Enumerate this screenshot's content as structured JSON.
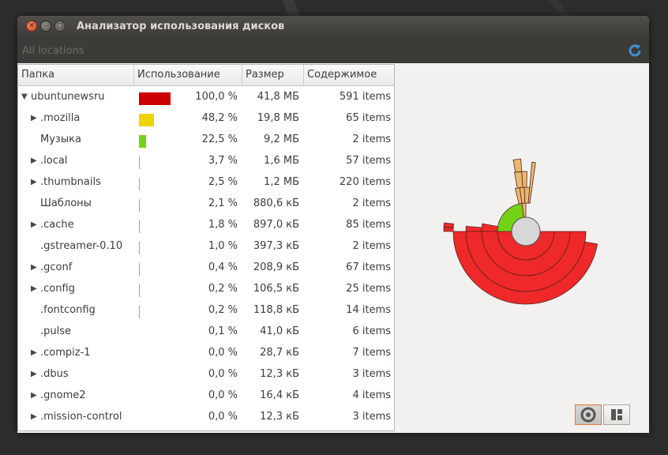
{
  "window": {
    "title": "Анализатор использования дисков"
  },
  "toolbar": {
    "locations_label": "All locations"
  },
  "columns": {
    "folder": "Папка",
    "usage": "Использование",
    "size": "Размер",
    "contents": "Содержимое"
  },
  "rows": [
    {
      "name": "ubuntunewsru",
      "expander": "expanded",
      "percent": "100,0 %",
      "usage_fraction": 1.0,
      "bar_color": "#cc0000",
      "size": "41,8 МБ",
      "items": "591 items"
    },
    {
      "name": ".mozilla",
      "expander": "collapsed",
      "percent": "48,2 %",
      "usage_fraction": 0.482,
      "bar_color": "#edd400",
      "size": "19,8 МБ",
      "items": "65 items"
    },
    {
      "name": "Музыка",
      "expander": "none",
      "percent": "22,5 %",
      "usage_fraction": 0.225,
      "bar_color": "#73d216",
      "size": "9,2 МБ",
      "items": "2 items"
    },
    {
      "name": ".local",
      "expander": "collapsed",
      "percent": "3,7 %",
      "usage_fraction": 0.037,
      "bar_color": "#73d216",
      "size": "1,6 МБ",
      "items": "57 items"
    },
    {
      "name": ".thumbnails",
      "expander": "collapsed",
      "percent": "2,5 %",
      "usage_fraction": 0.025,
      "bar_color": "#73d216",
      "size": "1,2 МБ",
      "items": "220 items"
    },
    {
      "name": "Шаблоны",
      "expander": "none",
      "percent": "2,1 %",
      "usage_fraction": 0.021,
      "bar_color": "#73d216",
      "size": "880,6 кБ",
      "items": "2 items"
    },
    {
      "name": ".cache",
      "expander": "collapsed",
      "percent": "1,8 %",
      "usage_fraction": 0.018,
      "bar_color": "#73d216",
      "size": "897,0 кБ",
      "items": "85 items"
    },
    {
      "name": ".gstreamer-0.10",
      "expander": "none",
      "percent": "1,0 %",
      "usage_fraction": 0.01,
      "bar_color": "#73d216",
      "size": "397,3 кБ",
      "items": "2 items"
    },
    {
      "name": ".gconf",
      "expander": "collapsed",
      "percent": "0,4 %",
      "usage_fraction": 0.004,
      "bar_color": "#73d216",
      "size": "208,9 кБ",
      "items": "67 items"
    },
    {
      "name": ".config",
      "expander": "collapsed",
      "percent": "0,2 %",
      "usage_fraction": 0.002,
      "bar_color": "#73d216",
      "size": "106,5 кБ",
      "items": "25 items"
    },
    {
      "name": ".fontconfig",
      "expander": "none",
      "percent": "0,2 %",
      "usage_fraction": 0.002,
      "bar_color": "#73d216",
      "size": "118,8 кБ",
      "items": "14 items"
    },
    {
      "name": ".pulse",
      "expander": "none",
      "percent": "0,1 %",
      "usage_fraction": 0.001,
      "bar_color": "#73d216",
      "size": "41,0 кБ",
      "items": "6 items"
    },
    {
      "name": ".compiz-1",
      "expander": "collapsed",
      "percent": "0,0 %",
      "usage_fraction": 0.0,
      "bar_color": "#73d216",
      "size": "28,7 кБ",
      "items": "7 items"
    },
    {
      "name": ".dbus",
      "expander": "collapsed",
      "percent": "0,0 %",
      "usage_fraction": 0.0,
      "bar_color": "#73d216",
      "size": "12,3 кБ",
      "items": "3 items"
    },
    {
      "name": ".gnome2",
      "expander": "collapsed",
      "percent": "0,0 %",
      "usage_fraction": 0.0,
      "bar_color": "#73d216",
      "size": "16,4 кБ",
      "items": "4 items"
    },
    {
      "name": ".mission-control",
      "expander": "collapsed",
      "percent": "0,0 %",
      "usage_fraction": 0.0,
      "bar_color": "#73d216",
      "size": "12,3 кБ",
      "items": "3 items"
    }
  ],
  "ringschart": {
    "inner_color": "#d7d7d7",
    "ring_colors": [
      "#73d216",
      "#ef2929",
      "#e9b96e"
    ],
    "view_modes": [
      {
        "name": "rings-chart-view-icon",
        "active": true
      },
      {
        "name": "treemap-view-icon",
        "active": false
      }
    ]
  }
}
